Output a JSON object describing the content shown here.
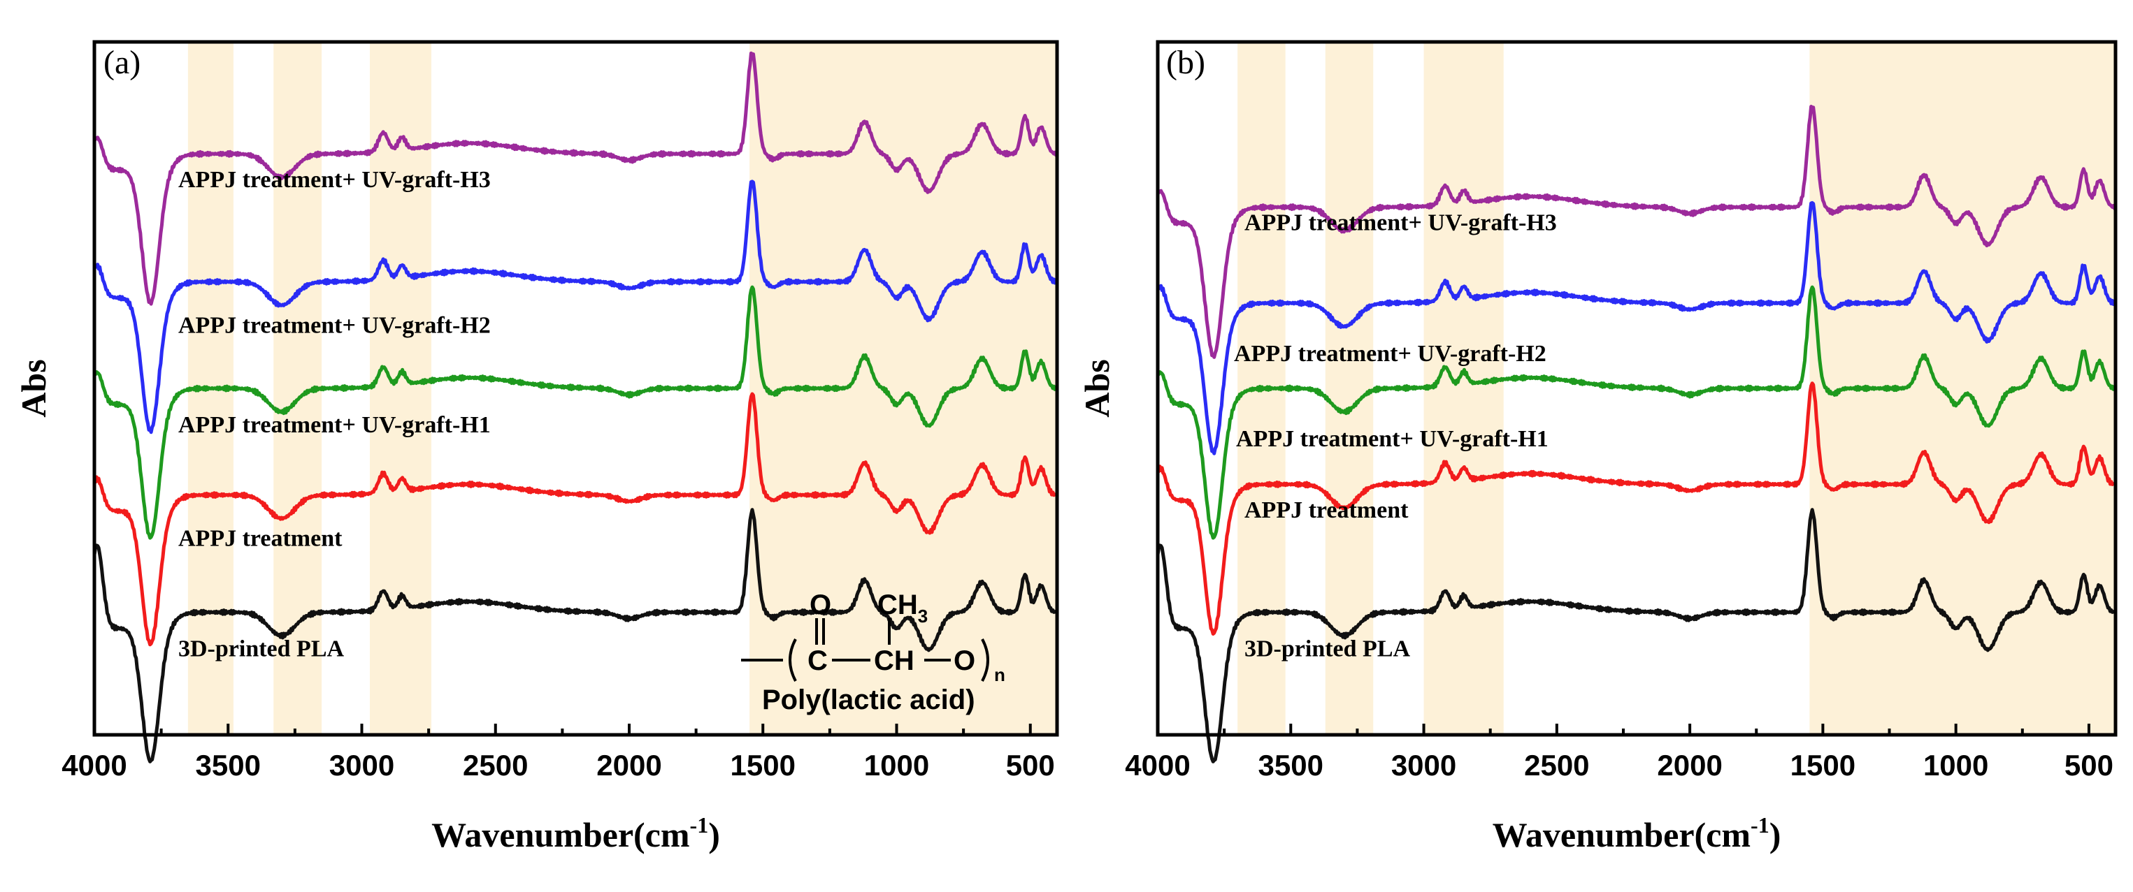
{
  "chart_data": [
    {
      "panel": "(a)",
      "type": "line",
      "xlabel": "Wavenumber(cm",
      "xlabel_sup": "-1",
      "xlabel_close": ")",
      "ylabel": "Abs",
      "xlim": [
        4000,
        400
      ],
      "x_reversed": true,
      "xticks": [
        "4000",
        "3500",
        "3000",
        "2500",
        "2000",
        "1500",
        "1000",
        "500"
      ],
      "highlight_bands": [
        [
          3650,
          3480
        ],
        [
          3330,
          3150
        ],
        [
          2970,
          2740
        ],
        [
          1550,
          400
        ]
      ],
      "series": [
        {
          "name": "APPJ treatment+ UV-graft-H3",
          "color": "#9c2a9b",
          "baseline": 5.1
        },
        {
          "name": "APPJ treatment+ UV-graft-H2",
          "color": "#2a2cf5",
          "baseline": 3.9
        },
        {
          "name": "APPJ treatment+ UV-graft-H1",
          "color": "#1e9a1e",
          "baseline": 2.9
        },
        {
          "name": "APPJ treatment",
          "color": "#f21c1c",
          "baseline": 1.9
        },
        {
          "name": "3D-printed PLA",
          "color": "#111111",
          "baseline": 0.8
        }
      ],
      "inset": {
        "title": "Poly(lactic acid)",
        "carbonyl_o": "O",
        "methyl": "CH",
        "methyl_sub": "3",
        "backbone_c": "C",
        "backbone_ch": "CH",
        "backbone_o": "O",
        "repeat_n": "n"
      }
    },
    {
      "panel": "(b)",
      "type": "line",
      "xlabel": "Wavenumber(cm",
      "xlabel_sup": "-1",
      "xlabel_close": ")",
      "ylabel": "Abs",
      "xlim": [
        4000,
        400
      ],
      "x_reversed": true,
      "xticks": [
        "4000",
        "3500",
        "3000",
        "2500",
        "2000",
        "1500",
        "1000",
        "500"
      ],
      "highlight_bands": [
        [
          3700,
          3520
        ],
        [
          3370,
          3190
        ],
        [
          3000,
          2700
        ],
        [
          1550,
          400
        ]
      ],
      "series": [
        {
          "name": "APPJ treatment+ UV-graft-H3",
          "color": "#9c2a9b",
          "baseline": 4.6
        },
        {
          "name": "APPJ treatment+ UV-graft-H2",
          "color": "#2a2cf5",
          "baseline": 3.7
        },
        {
          "name": "APPJ treatment+ UV-graft-H1",
          "color": "#1e9a1e",
          "baseline": 2.9
        },
        {
          "name": "APPJ treatment",
          "color": "#f21c1c",
          "baseline": 2.0
        },
        {
          "name": "3D-printed PLA",
          "color": "#111111",
          "baseline": 0.8
        }
      ]
    }
  ]
}
